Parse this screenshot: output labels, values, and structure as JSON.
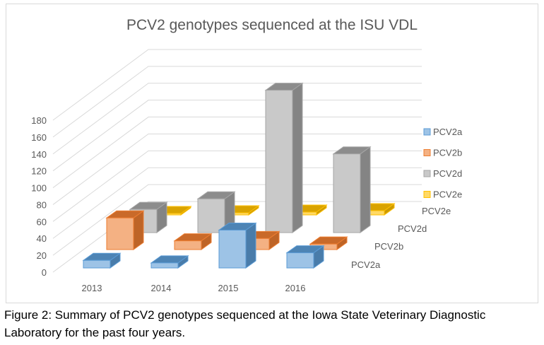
{
  "chart_data": {
    "type": "bar",
    "subtype": "3d-column",
    "title": "PCV2 genotypes sequenced at the ISU VDL",
    "categories": [
      "2013",
      "2014",
      "2015",
      "2016"
    ],
    "series": [
      {
        "name": "PCV2a",
        "values": [
          9,
          6,
          45,
          18
        ],
        "color": "#9dc3e6",
        "stroke": "#5b9bd5"
      },
      {
        "name": "PCV2b",
        "values": [
          40,
          11,
          14,
          7
        ],
        "color": "#f4b183",
        "stroke": "#ed7d31"
      },
      {
        "name": "PCV2d",
        "values": [
          31,
          45,
          190,
          105
        ],
        "color": "#c9c9c9",
        "stroke": "#a5a5a5"
      },
      {
        "name": "PCV2e",
        "values": [
          0,
          3,
          4,
          6
        ],
        "color": "#ffd966",
        "stroke": "#ffc000"
      }
    ],
    "yticks": [
      0,
      20,
      40,
      60,
      80,
      100,
      120,
      140,
      160,
      180
    ],
    "ylim": [
      0,
      180
    ],
    "grid": true,
    "legend": "right"
  },
  "caption": "Figure 2: Summary of PCV2 genotypes sequenced at the Iowa State Veterinary Diagnostic Laboratory for the past four years."
}
